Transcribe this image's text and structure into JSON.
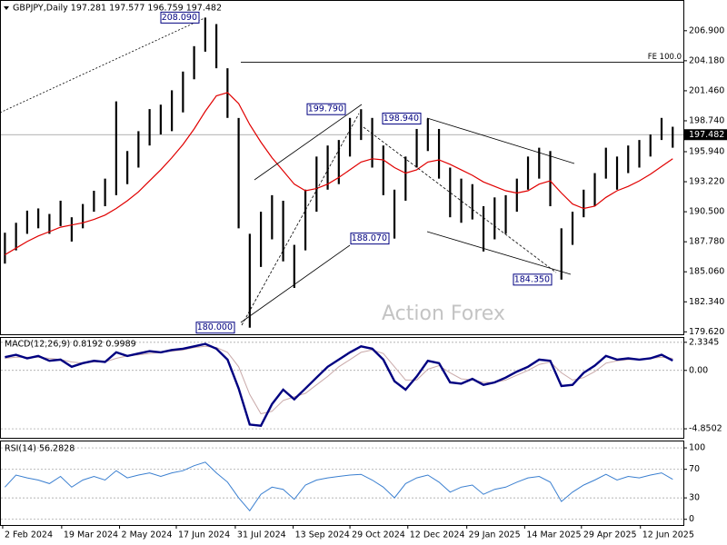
{
  "watermark": "Action Forex",
  "chart_data": [
    {
      "type": "ohlc",
      "title": "GBPJPY,Daily  197.281 197.577 196.759 197.482",
      "xlim": [
        -0.4,
        61
      ],
      "ylim": [
        179.4,
        209.6
      ],
      "yticks": [
        {
          "value": 206.9,
          "label": "206.900"
        },
        {
          "value": 204.18,
          "label": "204.180"
        },
        {
          "value": 201.46,
          "label": "201.460"
        },
        {
          "value": 198.74,
          "label": "198.740"
        },
        {
          "value": 195.94,
          "label": "195.940"
        },
        {
          "value": 193.22,
          "label": "193.220"
        },
        {
          "value": 190.5,
          "label": "190.500"
        },
        {
          "value": 187.78,
          "label": "187.780"
        },
        {
          "value": 185.06,
          "label": "185.060"
        },
        {
          "value": 182.34,
          "label": "182.340"
        },
        {
          "value": 179.62,
          "label": "179.620"
        }
      ],
      "high": [
        188.6,
        189.5,
        190.6,
        190.8,
        190.3,
        191.5,
        190.0,
        191.2,
        192.4,
        193.5,
        200.5,
        196.0,
        197.8,
        199.8,
        200.2,
        201.5,
        203.2,
        205.5,
        208.09,
        207.5,
        203.5,
        199.0,
        188.5,
        190.5,
        192.0,
        191.5,
        187.5,
        192.5,
        195.5,
        196.5,
        197.0,
        199.0,
        199.79,
        199.0,
        196.5,
        192.5,
        195.5,
        198.0,
        198.94,
        198.0,
        194.5,
        193.5,
        193.0,
        191.0,
        191.8,
        192.0,
        193.5,
        195.5,
        196.3,
        196.0,
        189.0,
        190.5,
        192.5,
        194.0,
        196.3,
        195.5,
        196.5,
        197.0,
        197.5,
        199.0,
        198.2
      ],
      "low": [
        185.8,
        187.0,
        188.5,
        189.0,
        188.5,
        189.2,
        187.8,
        189.0,
        190.5,
        191.0,
        192.0,
        193.0,
        194.5,
        196.5,
        197.5,
        197.8,
        199.5,
        202.5,
        205.0,
        203.5,
        199.0,
        189.0,
        180.0,
        185.5,
        188.0,
        186.0,
        183.6,
        187.0,
        190.5,
        192.5,
        193.0,
        195.5,
        197.0,
        194.5,
        192.0,
        188.07,
        191.5,
        194.5,
        196.0,
        193.5,
        190.0,
        189.5,
        189.8,
        186.9,
        188.0,
        188.5,
        190.5,
        192.5,
        193.5,
        191.0,
        184.35,
        187.5,
        190.0,
        191.0,
        193.5,
        192.5,
        194.0,
        194.5,
        195.5,
        197.0,
        196.3
      ],
      "color": "#000000",
      "lines": [
        {
          "color": "#e00000",
          "values": [
            186.6,
            187.2,
            187.8,
            188.3,
            188.7,
            189.1,
            189.3,
            189.5,
            189.8,
            190.2,
            190.8,
            191.5,
            192.3,
            193.3,
            194.3,
            195.4,
            196.6,
            198.0,
            199.6,
            201.0,
            201.3,
            200.3,
            198.4,
            196.8,
            195.4,
            194.2,
            193.0,
            192.4,
            192.6,
            193.0,
            193.6,
            194.3,
            195.0,
            195.3,
            195.2,
            194.5,
            194.0,
            194.3,
            195.0,
            195.2,
            194.8,
            194.3,
            193.8,
            193.2,
            192.8,
            192.4,
            192.2,
            192.4,
            193.0,
            193.3,
            192.2,
            191.2,
            190.8,
            191.0,
            191.8,
            192.4,
            192.8,
            193.3,
            193.9,
            194.6,
            195.3
          ]
        }
      ],
      "last_price": {
        "value": 197.482,
        "label": "197.482"
      },
      "fe_level": {
        "value": 204.05,
        "label": "FE 100.0"
      },
      "annotations": [
        {
          "value": 208.09,
          "label": "208.090"
        },
        {
          "value": 199.79,
          "label": "199.790"
        },
        {
          "value": 198.94,
          "label": "198.940"
        },
        {
          "value": 188.07,
          "label": "188.070"
        },
        {
          "value": 184.35,
          "label": "184.350"
        },
        {
          "value": 180.0,
          "label": "180.000"
        }
      ]
    },
    {
      "type": "line",
      "title": "MACD(12,26,9) 0.8192 0.9989",
      "ylim": [
        -5.6,
        2.7
      ],
      "yticks": [
        2.3345,
        {
          "value": 0,
          "label": "0.00"
        },
        -4.8502
      ],
      "series": [
        {
          "color": "#000080",
          "values": [
            1.1,
            1.3,
            1.0,
            1.2,
            0.8,
            0.9,
            0.3,
            0.6,
            0.8,
            0.7,
            1.5,
            1.2,
            1.4,
            1.6,
            1.5,
            1.7,
            1.8,
            2.0,
            2.2,
            1.8,
            0.9,
            -1.5,
            -4.5,
            -4.6,
            -2.8,
            -1.6,
            -2.4,
            -1.5,
            -0.6,
            0.3,
            0.9,
            1.5,
            2.0,
            1.8,
            0.9,
            -0.9,
            -1.6,
            -0.5,
            0.8,
            0.6,
            -1.0,
            -1.1,
            -0.7,
            -1.2,
            -1.0,
            -0.6,
            -0.1,
            0.3,
            0.9,
            0.8,
            -1.3,
            -1.2,
            -0.2,
            0.4,
            1.2,
            0.9,
            1.0,
            0.9,
            1.0,
            1.3,
            0.82
          ]
        },
        {
          "color": "#c9a9a9",
          "values": [
            1.0,
            1.1,
            1.1,
            1.1,
            1.0,
            0.9,
            0.7,
            0.6,
            0.7,
            0.7,
            1.0,
            1.2,
            1.3,
            1.4,
            1.5,
            1.6,
            1.7,
            1.9,
            2.0,
            1.9,
            1.5,
            0.3,
            -2.0,
            -3.6,
            -3.4,
            -2.5,
            -2.2,
            -1.9,
            -1.2,
            -0.5,
            0.3,
            0.9,
            1.5,
            1.7,
            1.4,
            0.3,
            -0.8,
            -0.8,
            0.1,
            0.4,
            -0.2,
            -0.7,
            -0.8,
            -1.0,
            -1.0,
            -0.8,
            -0.4,
            0.0,
            0.5,
            0.7,
            -0.2,
            -0.8,
            -0.6,
            -0.1,
            0.6,
            0.8,
            0.9,
            0.9,
            1.0,
            1.1,
            1.0
          ]
        }
      ]
    },
    {
      "type": "line",
      "title": "RSI(14) 56.2828",
      "ylim": [
        -8,
        109
      ],
      "yticks": [
        100,
        70,
        30,
        0
      ],
      "series": [
        {
          "color": "#3a7fd0",
          "values": [
            45,
            62,
            58,
            55,
            50,
            60,
            45,
            55,
            60,
            55,
            68,
            58,
            62,
            65,
            60,
            65,
            68,
            75,
            80,
            65,
            52,
            30,
            12,
            35,
            45,
            42,
            28,
            48,
            55,
            58,
            60,
            62,
            63,
            55,
            45,
            30,
            50,
            58,
            62,
            52,
            38,
            45,
            48,
            35,
            42,
            45,
            52,
            58,
            60,
            52,
            25,
            38,
            48,
            55,
            63,
            55,
            60,
            58,
            62,
            65,
            56
          ]
        }
      ],
      "xticks": [
        {
          "value": -0.2,
          "label": "2 Feb 2024"
        },
        {
          "value": 5.1,
          "label": "19 Mar 2024"
        },
        {
          "value": 10.3,
          "label": "2 May 2024"
        },
        {
          "value": 15.4,
          "label": "17 Jun 2024"
        },
        {
          "value": 20.7,
          "label": "31 Jul 2024"
        },
        {
          "value": 25.9,
          "label": "13 Sep 2024"
        },
        {
          "value": 31.0,
          "label": "29 Oct 2024"
        },
        {
          "value": 36.2,
          "label": "12 Dec 2024"
        },
        {
          "value": 41.5,
          "label": "29 Jan 2025"
        },
        {
          "value": 46.7,
          "label": "14 Mar 2025"
        },
        {
          "value": 51.8,
          "label": "29 Apr 2025"
        },
        {
          "value": 57.1,
          "label": "12 Jun 2025"
        }
      ]
    }
  ]
}
